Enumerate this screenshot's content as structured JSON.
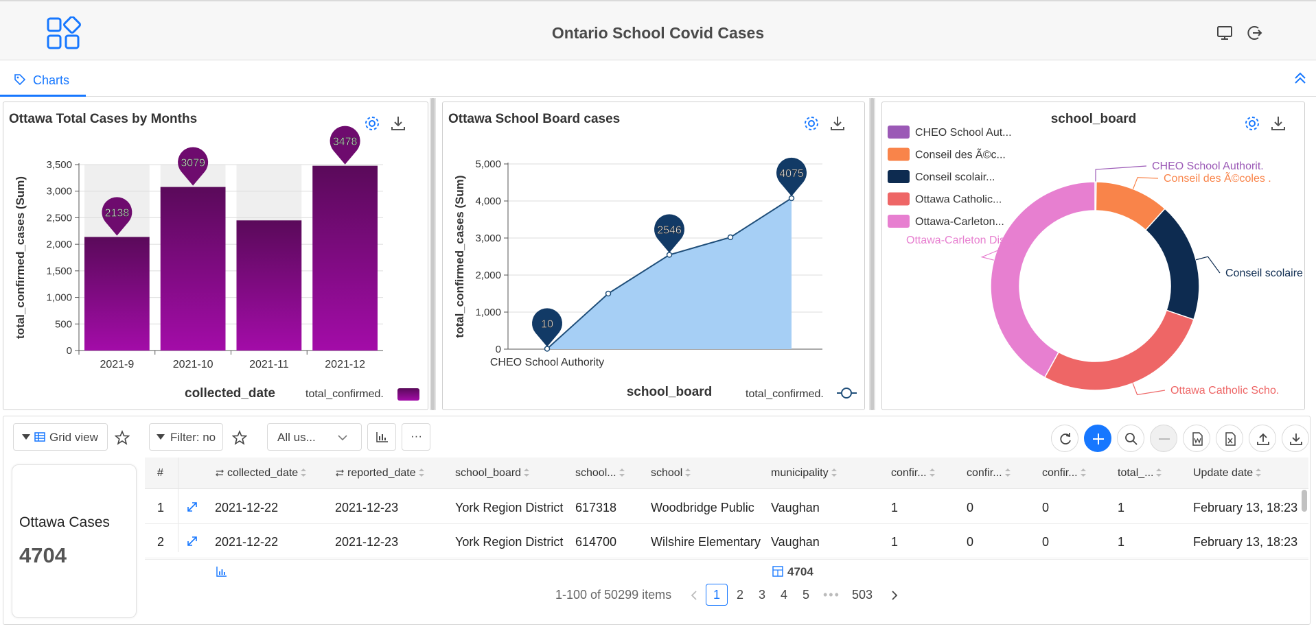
{
  "header": {
    "title": "Ontario School Covid Cases",
    "icons": [
      "apps-grid-icon",
      "monitor-icon",
      "logout-icon"
    ]
  },
  "tabs": [
    {
      "label": "Charts",
      "active": true
    }
  ],
  "colors": {
    "accent": "#1677ff",
    "bar": "#8a0a8a",
    "line": "#1f4e79",
    "area": "#a6cff5"
  },
  "charts": {
    "bar": {
      "title": "Ottawa Total Cases by Months",
      "legend": "total_confirmed."
    },
    "line": {
      "title": "Ottawa School Board cases",
      "legend": "total_confirmed."
    },
    "pie": {
      "title": "school_board",
      "legend": [
        "CHEO School Aut...",
        "Conseil des Ã©c...",
        "Conseil scolair...",
        "Ottawa Catholic...",
        "Ottawa-Carleton..."
      ]
    }
  },
  "chart_data": [
    {
      "type": "bar",
      "title": "Ottawa Total Cases by Months",
      "xlabel": "collected_date",
      "ylabel": "total_confirmed_cases (Sum)",
      "categories": [
        "2021-9",
        "2021-10",
        "2021-11",
        "2021-12"
      ],
      "values": [
        2138,
        3079,
        2450,
        3478
      ],
      "labels": [
        "2138",
        "3079",
        "",
        "3478"
      ],
      "ylim": [
        0,
        3500
      ],
      "yticks": [
        "0",
        "500",
        "1,000",
        "1,500",
        "2,000",
        "2,500",
        "3,000",
        "3,500"
      ],
      "series": [
        {
          "name": "total_confirmed.",
          "values": [
            2138,
            3079,
            2450,
            3478
          ]
        }
      ],
      "legend_position": "bottom-right",
      "grid": true
    },
    {
      "type": "area",
      "title": "Ottawa School Board cases",
      "xlabel": "school_board",
      "ylabel": "total_confirmed_cases (Sum)",
      "categories": [
        "CHEO School Authority",
        "",
        "",
        "",
        ""
      ],
      "values": [
        10,
        1500,
        2546,
        3020,
        4075
      ],
      "labels": [
        "10",
        "",
        "2546",
        "",
        "4075"
      ],
      "ylim": [
        0,
        5000
      ],
      "yticks": [
        "0",
        "1,000",
        "2,000",
        "3,000",
        "4,000",
        "5,000"
      ],
      "series": [
        {
          "name": "total_confirmed.",
          "values": [
            10,
            1500,
            2546,
            3020,
            4075
          ]
        }
      ],
      "legend_position": "bottom-right",
      "grid": true
    },
    {
      "type": "pie",
      "title": "school_board",
      "categories": [
        "CHEO School Authorit.",
        "Conseil des Ã©coles .",
        "Conseil scolaire",
        "Ottawa Catholic Scho.",
        "Ottawa-Carleton Dist."
      ],
      "values": [
        0.2,
        11.5,
        18.5,
        27.8,
        42.0
      ],
      "colors": [
        "#9b59b6",
        "#f9844a",
        "#0d2b50",
        "#ee6666",
        "#e77fd0"
      ],
      "legend_position": "top-left"
    }
  ],
  "toolbar": {
    "view_label": "Grid view",
    "filter_label": "Filter: no",
    "select_value": "All us...",
    "more_label": "···"
  },
  "stat": {
    "label": "Ottawa Cases",
    "value": "4704"
  },
  "table": {
    "columns": [
      "#",
      "collected_date",
      "reported_date",
      "school_board",
      "school...",
      "school",
      "municipality",
      "confir...",
      "confir...",
      "confir...",
      "total_...",
      "Update date"
    ],
    "rows": [
      [
        "1",
        "2021-12-22",
        "2021-12-23",
        "York Region District",
        "617318",
        "Woodbridge Public",
        "Vaughan",
        "1",
        "0",
        "0",
        "1",
        "February 13, 18:23"
      ],
      [
        "2",
        "2021-12-22",
        "2021-12-23",
        "York Region District",
        "614700",
        "Wilshire Elementary",
        "Vaughan",
        "1",
        "0",
        "0",
        "1",
        "February 13, 18:23"
      ]
    ],
    "footer_total": "4704"
  },
  "pagination": {
    "summary": "1-100 of 50299 items",
    "pages": [
      "1",
      "2",
      "3",
      "4",
      "5"
    ],
    "ellipsis": "•••",
    "last": "503",
    "current": "1"
  }
}
